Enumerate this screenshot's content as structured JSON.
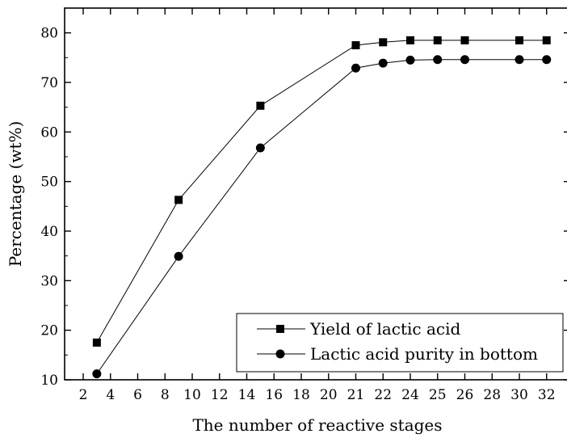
{
  "chart_data": {
    "type": "line",
    "title": "",
    "xlabel": "The number of reactive stages",
    "ylabel": "Percentage (wt%)",
    "x_ticks": [
      "2",
      "4",
      "6",
      "8",
      "10",
      "12",
      "14",
      "16",
      "18",
      "20",
      "21",
      "22",
      "24",
      "25",
      "26",
      "28",
      "30",
      "32"
    ],
    "y_ticks": [
      "10",
      "20",
      "30",
      "40",
      "50",
      "60",
      "70",
      "80"
    ],
    "ylim": [
      10,
      85
    ],
    "x": [
      3,
      9,
      15,
      21,
      22,
      24,
      25,
      26,
      30,
      32
    ],
    "series": [
      {
        "name": "Yield of lactic acid",
        "marker": "square",
        "values": [
          17.5,
          46.3,
          65.3,
          77.5,
          78.1,
          78.5,
          78.5,
          78.5,
          78.5,
          78.5
        ]
      },
      {
        "name": "Lactic acid purity in bottom",
        "marker": "circle",
        "values": [
          11.2,
          34.9,
          56.8,
          72.9,
          73.9,
          74.5,
          74.6,
          74.6,
          74.6,
          74.6
        ]
      }
    ],
    "legend_position": "bottom-right",
    "grid": false,
    "colors": {
      "line": "#000000",
      "marker": "#000000"
    }
  }
}
